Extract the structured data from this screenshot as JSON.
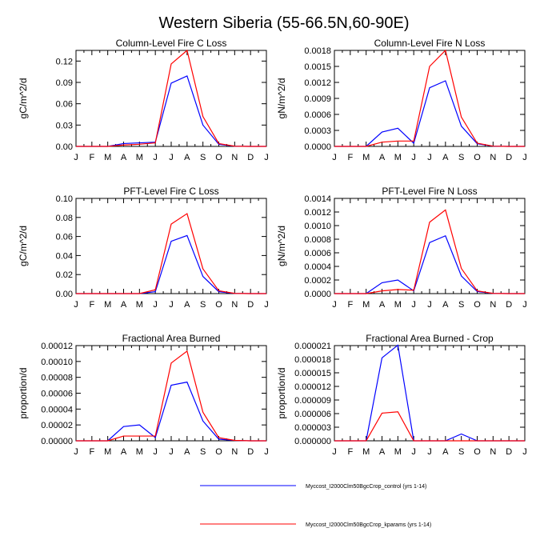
{
  "figure_title": "Western Siberia (55-66.5N,60-90E)",
  "months": [
    "J",
    "F",
    "M",
    "A",
    "M",
    "J",
    "J",
    "A",
    "S",
    "O",
    "N",
    "D",
    "J"
  ],
  "legend": [
    {
      "name": "Myccost_I2000Clm50BgcCrop_control (yrs 1-14)",
      "color": "#0000ff"
    },
    {
      "name": "Myccost_I2000Clm50BgcCrop_kparams (yrs 1-14)",
      "color": "#ff0000"
    }
  ],
  "chart_data": [
    {
      "type": "line",
      "title": "Column-Level Fire C Loss",
      "ylabel": "gC/m^2/d",
      "ylim": [
        0,
        0.135
      ],
      "yticks": [
        0.0,
        0.03,
        0.06,
        0.09,
        0.12
      ],
      "ytick_labels": [
        "0.00",
        "0.03",
        "0.06",
        "0.09",
        "0.12"
      ],
      "x": [
        1,
        2,
        3,
        4,
        5,
        6,
        7,
        8,
        9,
        10,
        11,
        12,
        13
      ],
      "series": [
        {
          "name": "Myccost_I2000Clm50BgcCrop_control (yrs 1-14)",
          "color": "#0000ff",
          "values": [
            0,
            0,
            0,
            0.004,
            0.005,
            0.006,
            0.089,
            0.099,
            0.03,
            0.003,
            0.0003,
            0,
            0
          ]
        },
        {
          "name": "Myccost_I2000Clm50BgcCrop_kparams (yrs 1-14)",
          "color": "#ff0000",
          "values": [
            0,
            0,
            0,
            0.002,
            0.003,
            0.005,
            0.116,
            0.135,
            0.042,
            0.004,
            0.0003,
            0,
            0
          ]
        }
      ]
    },
    {
      "type": "line",
      "title": "Column-Level Fire N Loss",
      "ylabel": "gN/m^2/d",
      "ylim": [
        0,
        0.0018
      ],
      "yticks": [
        0,
        0.0003,
        0.0006,
        0.0009,
        0.0012,
        0.0015,
        0.0018
      ],
      "ytick_labels": [
        "0.0000",
        "0.0003",
        "0.0006",
        "0.0009",
        "0.0012",
        "0.0015",
        "0.0018"
      ],
      "x": [
        1,
        2,
        3,
        4,
        5,
        6,
        7,
        8,
        9,
        10,
        11,
        12,
        13
      ],
      "series": [
        {
          "name": "Myccost_I2000Clm50BgcCrop_control (yrs 1-14)",
          "color": "#0000ff",
          "values": [
            0,
            0,
            0,
            0.00027,
            0.00034,
            6e-05,
            0.0011,
            0.00123,
            0.00038,
            5e-05,
            5e-06,
            0,
            0
          ]
        },
        {
          "name": "Myccost_I2000Clm50BgcCrop_kparams (yrs 1-14)",
          "color": "#ff0000",
          "values": [
            0,
            0,
            0,
            8e-05,
            0.0001,
            0.0001,
            0.0015,
            0.0018,
            0.00055,
            6e-05,
            5e-06,
            0,
            0
          ]
        }
      ]
    },
    {
      "type": "line",
      "title": "PFT-Level Fire C Loss",
      "ylabel": "gC/m^2/d",
      "ylim": [
        0,
        0.1
      ],
      "yticks": [
        0,
        0.02,
        0.04,
        0.06,
        0.08,
        0.1
      ],
      "ytick_labels": [
        "0.00",
        "0.02",
        "0.04",
        "0.06",
        "0.08",
        "0.10"
      ],
      "x": [
        1,
        2,
        3,
        4,
        5,
        6,
        7,
        8,
        9,
        10,
        11,
        12,
        13
      ],
      "series": [
        {
          "name": "Myccost_I2000Clm50BgcCrop_control (yrs 1-14)",
          "color": "#0000ff",
          "values": [
            0,
            0,
            0,
            0,
            0,
            0.002,
            0.055,
            0.061,
            0.018,
            0.002,
            0.0002,
            0,
            0
          ]
        },
        {
          "name": "Myccost_I2000Clm50BgcCrop_kparams (yrs 1-14)",
          "color": "#ff0000",
          "values": [
            0,
            0,
            0,
            0,
            0,
            0.004,
            0.073,
            0.084,
            0.026,
            0.003,
            0.0002,
            0,
            0
          ]
        }
      ]
    },
    {
      "type": "line",
      "title": "PFT-Level Fire N Loss",
      "ylabel": "gN/m^2/d",
      "ylim": [
        0,
        0.0014
      ],
      "yticks": [
        0,
        0.0002,
        0.0004,
        0.0006,
        0.0008,
        0.001,
        0.0012,
        0.0014
      ],
      "ytick_labels": [
        "0.0000",
        "0.0002",
        "0.0004",
        "0.0006",
        "0.0008",
        "0.0010",
        "0.0012",
        "0.0014"
      ],
      "x": [
        1,
        2,
        3,
        4,
        5,
        6,
        7,
        8,
        9,
        10,
        11,
        12,
        13
      ],
      "series": [
        {
          "name": "Myccost_I2000Clm50BgcCrop_control (yrs 1-14)",
          "color": "#0000ff",
          "values": [
            0,
            0,
            0,
            0.00016,
            0.0002,
            4e-05,
            0.00075,
            0.00085,
            0.00026,
            3e-05,
            3e-06,
            0,
            0
          ]
        },
        {
          "name": "Myccost_I2000Clm50BgcCrop_kparams (yrs 1-14)",
          "color": "#ff0000",
          "values": [
            0,
            0,
            0,
            4e-05,
            6e-05,
            5e-05,
            0.00105,
            0.00123,
            0.00037,
            4e-05,
            3e-06,
            0,
            0
          ]
        }
      ]
    },
    {
      "type": "line",
      "title": "Fractional Area Burned",
      "ylabel": "proportion/d",
      "ylim": [
        0,
        0.00012
      ],
      "yticks": [
        0,
        2e-05,
        4e-05,
        6e-05,
        8e-05,
        0.0001,
        0.00012
      ],
      "ytick_labels": [
        "0.00000",
        "0.00002",
        "0.00004",
        "0.00006",
        "0.00008",
        "0.00010",
        "0.00012"
      ],
      "x": [
        1,
        2,
        3,
        4,
        5,
        6,
        7,
        8,
        9,
        10,
        11,
        12,
        13
      ],
      "series": [
        {
          "name": "Myccost_I2000Clm50BgcCrop_control (yrs 1-14)",
          "color": "#0000ff",
          "values": [
            0,
            0,
            0,
            1.8e-05,
            2e-05,
            4e-06,
            7e-05,
            7.4e-05,
            2.5e-05,
            2e-06,
            5e-07,
            0,
            0
          ]
        },
        {
          "name": "Myccost_I2000Clm50BgcCrop_kparams (yrs 1-14)",
          "color": "#ff0000",
          "values": [
            0,
            0,
            0,
            6e-06,
            6e-06,
            6e-06,
            9.8e-05,
            0.000113,
            3.6e-05,
            4e-06,
            5e-07,
            0,
            0
          ]
        }
      ]
    },
    {
      "type": "line",
      "title": "Fractional Area Burned - Crop",
      "ylabel": "proportion/d",
      "ylim": [
        0,
        2.1e-05
      ],
      "yticks": [
        0,
        3e-06,
        6e-06,
        9e-06,
        1.2e-05,
        1.5e-05,
        1.8e-05,
        2.1e-05
      ],
      "ytick_labels": [
        "0.000000",
        "0.000003",
        "0.000006",
        "0.000009",
        "0.000012",
        "0.000015",
        "0.000018",
        "0.000021"
      ],
      "x": [
        1,
        2,
        3,
        4,
        5,
        6,
        7,
        8,
        9,
        10,
        11,
        12,
        13
      ],
      "series": [
        {
          "name": "Myccost_I2000Clm50BgcCrop_control (yrs 1-14)",
          "color": "#0000ff",
          "values": [
            0,
            0,
            0,
            1.83e-05,
            2.11e-05,
            0,
            0,
            0,
            1.5e-06,
            0,
            0,
            0,
            0
          ]
        },
        {
          "name": "Myccost_I2000Clm50BgcCrop_kparams (yrs 1-14)",
          "color": "#ff0000",
          "values": [
            0,
            0,
            0,
            6.1e-06,
            6.4e-06,
            0,
            0,
            0,
            0,
            0,
            0,
            0,
            0
          ]
        }
      ]
    }
  ]
}
